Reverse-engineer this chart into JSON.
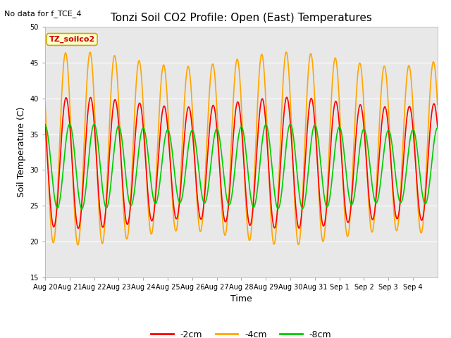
{
  "title": "Tonzi Soil CO2 Profile: Open (East) Temperatures",
  "subtitle": "No data for f_TCE_4",
  "ylabel": "Soil Temperature (C)",
  "xlabel": "Time",
  "legend_label": "TZ_soilco2",
  "ylim": [
    15,
    50
  ],
  "yticks": [
    15,
    20,
    25,
    30,
    35,
    40,
    45,
    50
  ],
  "color_2cm": "#ff0000",
  "color_4cm": "#ffa500",
  "color_8cm": "#00cc00",
  "total_days": 16,
  "fig_bg": "#ffffff",
  "plot_bg": "#e8e8e8",
  "grid_color": "#ffffff",
  "annotation_bg": "#ffffcc",
  "annotation_edge": "#ccaa00",
  "annotation_text": "#cc0000",
  "tick_fontsize": 7,
  "label_fontsize": 9,
  "title_fontsize": 11,
  "linewidth": 1.2,
  "npoints": 3000,
  "peak_hour_4cm": 14.0,
  "peak_hour_2cm": 14.5,
  "peak_hour_8cm": 18.0,
  "mean_4cm": 33.0,
  "mean_2cm": 31.0,
  "mean_8cm": 30.5,
  "amp_4cm": 12.5,
  "amp_2cm": 8.5,
  "amp_8cm": 5.5
}
